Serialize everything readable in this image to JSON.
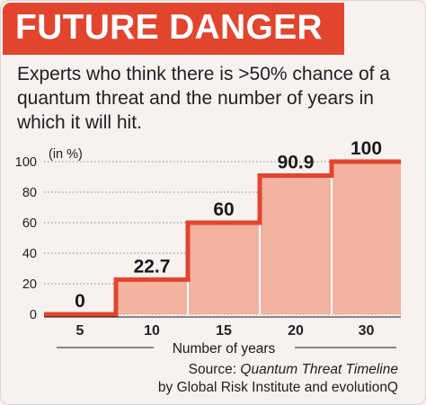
{
  "header": {
    "title": "FUTURE DANGER",
    "subtitle": "Experts who think there is >50% chance of a quantum threat and the number of years in which it will hit."
  },
  "source": {
    "prefix": "Source:",
    "work": "Quantum Threat Timeline",
    "suffix": "by Global Risk Institute and evolutionQ"
  },
  "colors": {
    "accent": "#e2452e",
    "bar_fill": "#f2b3a1",
    "step_line": "#e2452e",
    "background": "#f7f1ef"
  },
  "chart_data": {
    "type": "bar",
    "categories": [
      "5",
      "10",
      "15",
      "20",
      "30"
    ],
    "values": [
      0,
      22.7,
      60,
      90.9,
      100
    ],
    "value_labels": [
      "0",
      "22.7",
      "60",
      "90.9",
      "100"
    ],
    "ylabel": "(in %)",
    "xlabel": "Number of years",
    "ylim": [
      0,
      100
    ],
    "yticks": [
      "0",
      "20",
      "40",
      "60",
      "80",
      "100"
    ],
    "grid": true,
    "gridline_style": "dotted"
  }
}
